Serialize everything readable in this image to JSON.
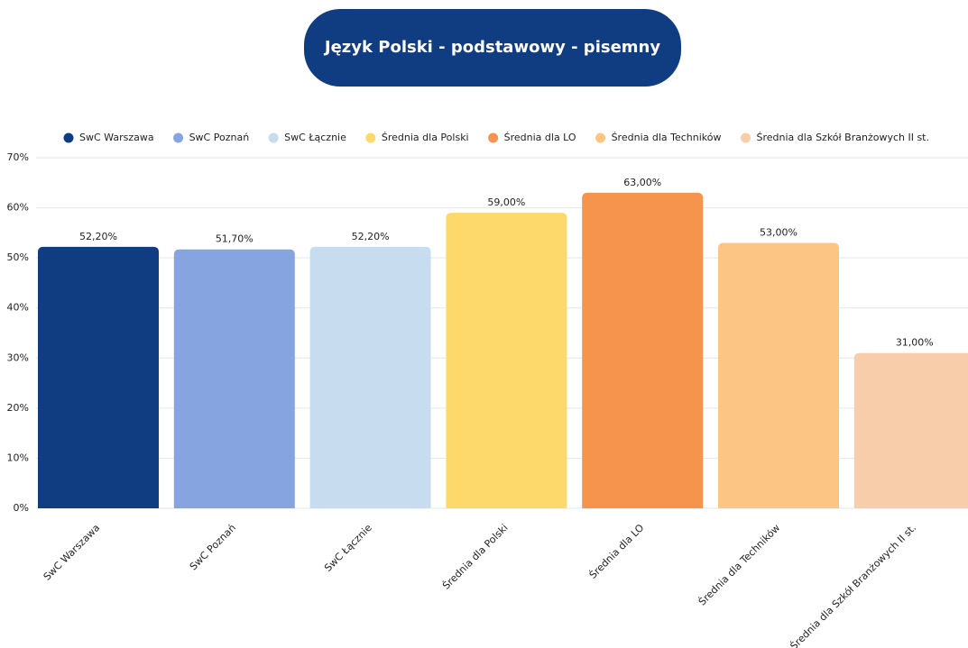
{
  "chart_data": {
    "type": "bar",
    "title": "Język Polski - podstawowy - pisemny",
    "categories": [
      "SwC Warszawa",
      "SwC Poznań",
      "SwC Łącznie",
      "Średnia dla Polski",
      "Średnia dla LO",
      "Średnia dla Techników",
      "Średnia dla Szkół Branżowych II st."
    ],
    "values": [
      52.2,
      51.7,
      52.2,
      59,
      63,
      53,
      31
    ],
    "value_labels": [
      "52,20%",
      "51,70%",
      "52,20%",
      "59,00%",
      "63,00%",
      "53,00%",
      "31,00%"
    ],
    "colors": [
      "#103c82",
      "#86a5e0",
      "#c8dcf0",
      "#fdd96b",
      "#f6934d",
      "#fdc583",
      "#f8cda9"
    ],
    "ylim": [
      0,
      70
    ],
    "yticks": [
      {
        "value": 0,
        "label": "0%"
      },
      {
        "value": 10,
        "label": "10%"
      },
      {
        "value": 20,
        "label": "20%"
      },
      {
        "value": 30,
        "label": "30%"
      },
      {
        "value": 40,
        "label": "40%"
      },
      {
        "value": 50,
        "label": "50%"
      },
      {
        "value": 60,
        "label": "60%"
      },
      {
        "value": 70,
        "label": "70%"
      }
    ],
    "grid": true,
    "legend": "top"
  }
}
